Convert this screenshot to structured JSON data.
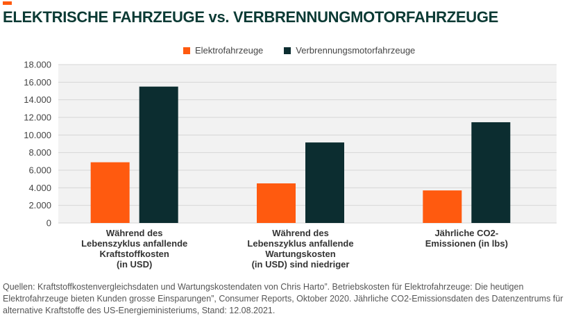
{
  "header": {
    "title": "ELEKTRISCHE FAHRZEUGE vs. VERBRENNUNGMOTORFAHRZEUGE"
  },
  "colors": {
    "accent": "#ff5a0f",
    "title": "#0b3a34",
    "electric": "#ff5a0f",
    "combustion": "#0c2d30",
    "plot_bg": "#f2f2f2",
    "grid": "#d6d6d6"
  },
  "legend": {
    "electric_label": "Elektrofahrzeuge",
    "combustion_label": "Verbrennungsmotorfahrzeuge"
  },
  "chart_data": {
    "type": "bar",
    "categories": [
      [
        "Während des",
        "Lebenszyklus anfallende",
        "Kraftstoffkosten",
        "(in USD)"
      ],
      [
        "Während des",
        "Lebenszyklus anfallende",
        "Wartungskosten",
        "(in USD) sind niedriger"
      ],
      [
        "Jährliche CO2-",
        "Emissionen (in lbs)"
      ]
    ],
    "series": [
      {
        "name": "Elektrofahrzeuge",
        "values": [
          6900,
          4500,
          3700
        ]
      },
      {
        "name": "Verbrennungsmotorfahrzeuge",
        "values": [
          15500,
          9150,
          11450
        ]
      }
    ],
    "ylim": [
      0,
      18000
    ],
    "yticks": [
      "0",
      "2.000",
      "4.000",
      "6.000",
      "8.000",
      "10.000",
      "12.000",
      "14.000",
      "16.000",
      "18.000"
    ],
    "grid": true,
    "legend_position": "top"
  },
  "footer": {
    "source": "Quellen: Kraftstoffkostenvergleichsdaten und Wartungskostendaten von Chris Harto”. Betriebskosten für Elektrofahrzeuge: Die heutigen Elektrofahrzeuge bieten Kunden grosse Einsparungen”, Consumer Reports, Oktober 2020. Jährliche CO2-Emissionsdaten des Datenzentrums für alternative Kraftstoffe des US-Energieministeriums, Stand: 12.08.2021."
  }
}
